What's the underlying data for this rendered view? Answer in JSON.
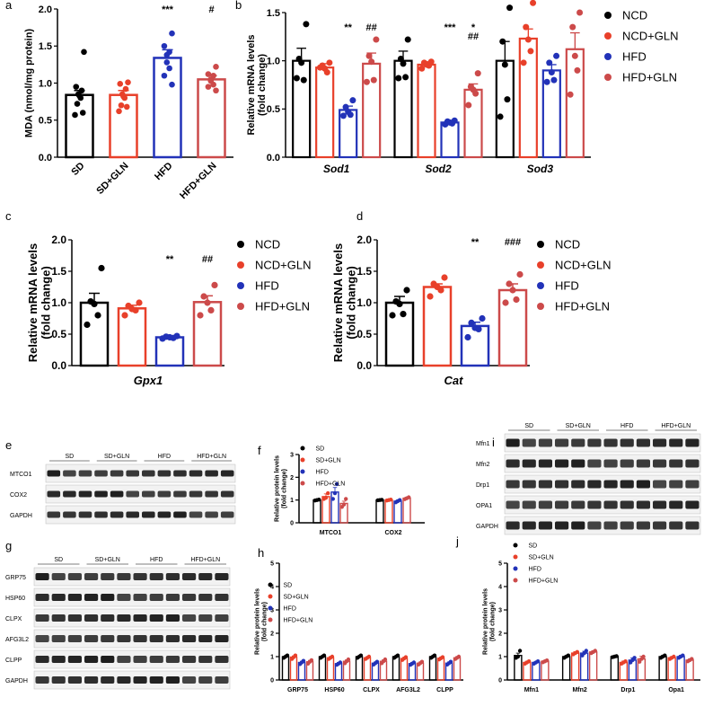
{
  "colors": {
    "black": "#000000",
    "red": "#e8402a",
    "blue": "#2232b8",
    "dred": "#cc4a4a"
  },
  "panel_labels": [
    "a",
    "b",
    "c",
    "d",
    "e",
    "f",
    "g",
    "h",
    "i",
    "j"
  ],
  "legend_ncd": [
    "NCD",
    "NCD+GLN",
    "HFD",
    "HFD+GLN"
  ],
  "legend_sd": [
    "SD",
    "SD+GLN",
    "HFD",
    "HFD+GLN"
  ],
  "chart_data": [
    {
      "id": "a",
      "type": "bar",
      "title": "",
      "categories": [
        "SD",
        "SD+GLN",
        "HFD",
        "HFD+GLN"
      ],
      "values": [
        0.84,
        0.84,
        1.34,
        1.05
      ],
      "errors": [
        0.06,
        0.06,
        0.11,
        0.05
      ],
      "points": [
        [
          1.42,
          0.95,
          0.9,
          0.85,
          0.83,
          0.8,
          0.72,
          0.6,
          0.57
        ],
        [
          1.01,
          0.99,
          0.92,
          0.85,
          0.82,
          0.8,
          0.7,
          0.68,
          0.62
        ],
        [
          1.67,
          1.5,
          1.42,
          1.38,
          1.28,
          1.2,
          1.1,
          0.98
        ],
        [
          1.22,
          1.12,
          1.1,
          1.05,
          1.03,
          0.98,
          0.95,
          0.9
        ]
      ],
      "annotations": [
        "",
        "",
        "***",
        "#"
      ],
      "ylabel": "MDA (nmol/mg protein)",
      "xlabel": "",
      "ylim": [
        0,
        2.0
      ],
      "yticks": [
        0.0,
        0.5,
        1.0,
        1.5,
        2.0
      ],
      "ytick_labels": [
        "0.0",
        "0.5",
        "1.0",
        "1.5",
        "2.0"
      ]
    },
    {
      "id": "b",
      "type": "bar",
      "categories": [
        "Sod1",
        "Sod2",
        "Sod3"
      ],
      "series": [
        {
          "name": "NCD",
          "values": [
            1.0,
            1.0,
            1.0
          ],
          "errors": [
            0.13,
            0.1,
            0.2
          ],
          "points": [
            [
              1.38,
              1.02,
              0.98,
              0.8,
              0.82
            ],
            [
              1.22,
              1.02,
              0.97,
              0.83,
              0.82
            ],
            [
              1.55,
              1.2,
              0.96,
              0.6,
              0.42
            ]
          ]
        },
        {
          "name": "NCD+GLN",
          "values": [
            0.93,
            0.96,
            1.23
          ],
          "errors": [
            0.04,
            0.03,
            0.1
          ],
          "points": [
            [
              0.98,
              0.95,
              0.92,
              0.88,
              0.93
            ],
            [
              0.99,
              0.98,
              0.96,
              0.95,
              0.92
            ],
            [
              1.6,
              1.35,
              1.22,
              1.1,
              0.98
            ]
          ]
        },
        {
          "name": "HFD",
          "values": [
            0.49,
            0.36,
            0.9
          ],
          "errors": [
            0.04,
            0.02,
            0.06
          ],
          "points": [
            [
              0.59,
              0.52,
              0.47,
              0.44,
              0.43
            ],
            [
              0.38,
              0.37,
              0.36,
              0.35,
              0.34
            ],
            [
              1.05,
              0.98,
              0.88,
              0.8,
              0.78
            ]
          ]
        },
        {
          "name": "HFD+GLN",
          "values": [
            0.97,
            0.7,
            1.12
          ],
          "errors": [
            0.11,
            0.06,
            0.17
          ],
          "points": [
            [
              1.22,
              1.05,
              0.99,
              0.8,
              0.78
            ],
            [
              0.87,
              0.73,
              0.7,
              0.66,
              0.54
            ],
            [
              1.5,
              1.35,
              1.05,
              0.9,
              0.65
            ]
          ]
        }
      ],
      "annotations": [
        [
          "",
          "",
          "**",
          "##"
        ],
        [
          "",
          "",
          "***",
          "* ##"
        ],
        [
          "",
          "",
          "",
          ""
        ]
      ],
      "ylabel": "Relative mRNA levels (fold change)",
      "ylim": [
        0,
        1.5
      ],
      "yticks": [
        0.0,
        0.5,
        1.0,
        1.5
      ],
      "ytick_labels": [
        "0.0",
        "0.5",
        "1.0",
        "1.5"
      ]
    },
    {
      "id": "c",
      "type": "bar",
      "categories": [
        "Gpx1"
      ],
      "series": [
        {
          "name": "NCD",
          "values": [
            1.0
          ],
          "errors": [
            0.15
          ],
          "points": [
            [
              1.55,
              1.02,
              0.98,
              0.8,
              0.65
            ]
          ]
        },
        {
          "name": "NCD+GLN",
          "values": [
            0.91
          ],
          "errors": [
            0.05
          ],
          "points": [
            [
              1.0,
              0.95,
              0.9,
              0.88,
              0.8
            ]
          ]
        },
        {
          "name": "HFD",
          "values": [
            0.45
          ],
          "errors": [
            0.02
          ],
          "points": [
            [
              0.47,
              0.46,
              0.45,
              0.44,
              0.43
            ]
          ]
        },
        {
          "name": "HFD+GLN",
          "values": [
            1.01
          ],
          "errors": [
            0.1
          ],
          "points": [
            [
              1.28,
              1.1,
              1.0,
              0.88,
              0.8
            ]
          ]
        }
      ],
      "annotations": [
        "",
        "",
        "**",
        "##"
      ],
      "ylabel": "Relative mRNA levels (fold change)",
      "ylim": [
        0,
        2.0
      ],
      "yticks": [
        0.0,
        0.5,
        1.0,
        1.5,
        2.0
      ],
      "ytick_labels": [
        "0.0",
        "0.5",
        "1.0",
        "1.5",
        "2.0"
      ]
    },
    {
      "id": "d",
      "type": "bar",
      "categories": [
        "Cat"
      ],
      "series": [
        {
          "name": "NCD",
          "values": [
            1.0
          ],
          "errors": [
            0.1
          ],
          "points": [
            [
              1.2,
              1.02,
              0.98,
              0.82,
              0.8
            ]
          ]
        },
        {
          "name": "NCD+GLN",
          "values": [
            1.25
          ],
          "errors": [
            0.05
          ],
          "points": [
            [
              1.4,
              1.3,
              1.25,
              1.2,
              1.1
            ]
          ]
        },
        {
          "name": "HFD",
          "values": [
            0.63
          ],
          "errors": [
            0.06
          ],
          "points": [
            [
              0.75,
              0.68,
              0.6,
              0.58,
              0.45
            ]
          ]
        },
        {
          "name": "HFD+GLN",
          "values": [
            1.2
          ],
          "errors": [
            0.1
          ],
          "points": [
            [
              1.45,
              1.3,
              1.2,
              1.05,
              1.0
            ]
          ]
        }
      ],
      "annotations": [
        "",
        "",
        "**",
        "###"
      ],
      "ylabel": "Relative mRNA levels (fold change)",
      "ylim": [
        0,
        2.0
      ],
      "yticks": [
        0.0,
        0.5,
        1.0,
        1.5,
        2.0
      ],
      "ytick_labels": [
        "0.0",
        "0.5",
        "1.0",
        "1.5",
        "2.0"
      ]
    },
    {
      "id": "f",
      "type": "bar",
      "categories": [
        "MTCO1",
        "COX2"
      ],
      "series": [
        {
          "name": "SD",
          "values": [
            1.0,
            1.0
          ],
          "errors": [
            0.05,
            0.02
          ],
          "points": [
            [
              1.02,
              1.0,
              0.98
            ],
            [
              1.01,
              1.0,
              0.99
            ]
          ]
        },
        {
          "name": "SD+GLN",
          "values": [
            1.15,
            1.0
          ],
          "errors": [
            0.12,
            0.02
          ],
          "points": [
            [
              1.3,
              1.1,
              1.05
            ],
            [
              1.02,
              1.0,
              0.98
            ]
          ]
        },
        {
          "name": "HFD",
          "values": [
            1.35,
            0.95
          ],
          "errors": [
            0.2,
            0.05
          ],
          "points": [
            [
              1.7,
              1.3,
              1.05
            ],
            [
              1.0,
              0.95,
              0.9
            ]
          ]
        },
        {
          "name": "HFD+GLN",
          "values": [
            0.85,
            1.08
          ],
          "errors": [
            0.1,
            0.04
          ],
          "points": [
            [
              1.05,
              0.8,
              0.7
            ],
            [
              1.12,
              1.08,
              1.04
            ]
          ]
        }
      ],
      "ylabel": "Relative protein levels (fold change)",
      "ylim": [
        0,
        3
      ],
      "yticks": [
        0,
        1,
        2,
        3
      ],
      "ytick_labels": [
        "0",
        "1",
        "2",
        "3"
      ]
    },
    {
      "id": "h",
      "type": "bar",
      "categories": [
        "GRP75",
        "HSP60",
        "CLPX",
        "AFG3L2",
        "CLPP"
      ],
      "series": [
        {
          "name": "SD",
          "values": [
            1.0,
            1.0,
            1.0,
            1.0,
            1.0
          ],
          "errors": [
            0.03,
            0.03,
            0.03,
            0.03,
            0.03
          ],
          "points": [
            [
              1.05,
              1.0,
              0.95
            ],
            [
              1.05,
              1.0,
              0.95
            ],
            [
              1.05,
              1.0,
              0.95
            ],
            [
              1.05,
              1.0,
              0.95
            ],
            [
              1.05,
              1.0,
              0.95
            ]
          ]
        },
        {
          "name": "SD+GLN",
          "values": [
            0.98,
            0.95,
            0.95,
            0.92,
            0.93
          ],
          "errors": [
            0.05,
            0.05,
            0.04,
            0.05,
            0.04
          ],
          "points": [
            [
              1.05,
              0.98,
              0.9
            ],
            [
              1.0,
              0.95,
              0.9
            ],
            [
              1.0,
              0.95,
              0.9
            ],
            [
              0.98,
              0.92,
              0.86
            ],
            [
              0.98,
              0.93,
              0.88
            ]
          ]
        },
        {
          "name": "HFD",
          "values": [
            0.75,
            0.7,
            0.72,
            0.7,
            0.72
          ],
          "errors": [
            0.05,
            0.05,
            0.05,
            0.05,
            0.05
          ],
          "points": [
            [
              0.82,
              0.75,
              0.68
            ],
            [
              0.75,
              0.7,
              0.65
            ],
            [
              0.78,
              0.72,
              0.66
            ],
            [
              0.75,
              0.7,
              0.65
            ],
            [
              0.78,
              0.72,
              0.66
            ]
          ]
        },
        {
          "name": "HFD+GLN",
          "values": [
            0.78,
            0.8,
            0.8,
            0.72,
            0.95
          ],
          "errors": [
            0.06,
            0.06,
            0.06,
            0.05,
            0.05
          ],
          "points": [
            [
              0.85,
              0.78,
              0.7
            ],
            [
              0.88,
              0.8,
              0.72
            ],
            [
              0.88,
              0.8,
              0.72
            ],
            [
              0.78,
              0.72,
              0.66
            ],
            [
              1.0,
              0.95,
              0.9
            ]
          ]
        }
      ],
      "ylabel": "Relative protein levels (fold change)",
      "ylim": [
        0,
        5
      ],
      "yticks": [
        0,
        1,
        2,
        3,
        4,
        5
      ],
      "ytick_labels": [
        "0",
        "1",
        "2",
        "3",
        "4",
        "5"
      ]
    },
    {
      "id": "j",
      "type": "bar",
      "categories": [
        "Mfn1",
        "Mfn2",
        "Drp1",
        "Opa1"
      ],
      "series": [
        {
          "name": "SD",
          "values": [
            1.05,
            1.0,
            1.0,
            1.0
          ],
          "errors": [
            0.1,
            0.04,
            0.03,
            0.05
          ],
          "points": [
            [
              1.25,
              1.0,
              0.95
            ],
            [
              1.05,
              1.0,
              0.95
            ],
            [
              1.02,
              1.0,
              0.98
            ],
            [
              1.05,
              1.0,
              0.95
            ]
          ]
        },
        {
          "name": "SD+GLN",
          "values": [
            0.75,
            1.15,
            0.75,
            0.95
          ],
          "errors": [
            0.05,
            0.06,
            0.06,
            0.05
          ],
          "points": [
            [
              0.8,
              0.75,
              0.7
            ],
            [
              1.2,
              1.15,
              1.1
            ],
            [
              0.8,
              0.75,
              0.7
            ],
            [
              1.0,
              0.95,
              0.9
            ]
          ]
        },
        {
          "name": "HFD",
          "values": [
            0.75,
            1.15,
            0.85,
            1.0
          ],
          "errors": [
            0.04,
            0.08,
            0.1,
            0.06
          ],
          "points": [
            [
              0.8,
              0.75,
              0.7
            ],
            [
              1.25,
              1.15,
              1.05
            ],
            [
              0.95,
              0.85,
              0.75
            ],
            [
              1.05,
              1.0,
              0.95
            ]
          ]
        },
        {
          "name": "HFD+GLN",
          "values": [
            0.8,
            1.2,
            0.9,
            0.85
          ],
          "errors": [
            0.04,
            0.05,
            0.12,
            0.05
          ],
          "points": [
            [
              0.84,
              0.8,
              0.76
            ],
            [
              1.25,
              1.2,
              1.15
            ],
            [
              1.0,
              0.9,
              0.78
            ],
            [
              0.9,
              0.85,
              0.8
            ]
          ]
        }
      ],
      "ylabel": "Relative protein levels (fold change)",
      "ylim": [
        0,
        5
      ],
      "yticks": [
        0,
        1,
        2,
        3,
        4,
        5
      ],
      "ytick_labels": [
        "0",
        "1",
        "2",
        "3",
        "4",
        "5"
      ]
    }
  ],
  "blots": {
    "e": {
      "groups": [
        "SD",
        "SD+GLN",
        "HFD",
        "HFD+GLN"
      ],
      "rows": [
        "MTCO1",
        "COX2",
        "GAPDH"
      ],
      "lanes": 12
    },
    "g": {
      "groups": [
        "SD",
        "SD+GLN",
        "HFD",
        "HFD+GLN"
      ],
      "rows": [
        "GRP75",
        "HSP60",
        "CLPX",
        "AFG3L2",
        "CLPP",
        "GAPDH"
      ],
      "lanes": 12
    },
    "i": {
      "groups": [
        "SD",
        "SD+GLN",
        "HFD",
        "HFD+GLN"
      ],
      "rows": [
        "Mfn1",
        "Mfn2",
        "Drp1",
        "OPA1",
        "GAPDH"
      ],
      "lanes": 12
    }
  }
}
